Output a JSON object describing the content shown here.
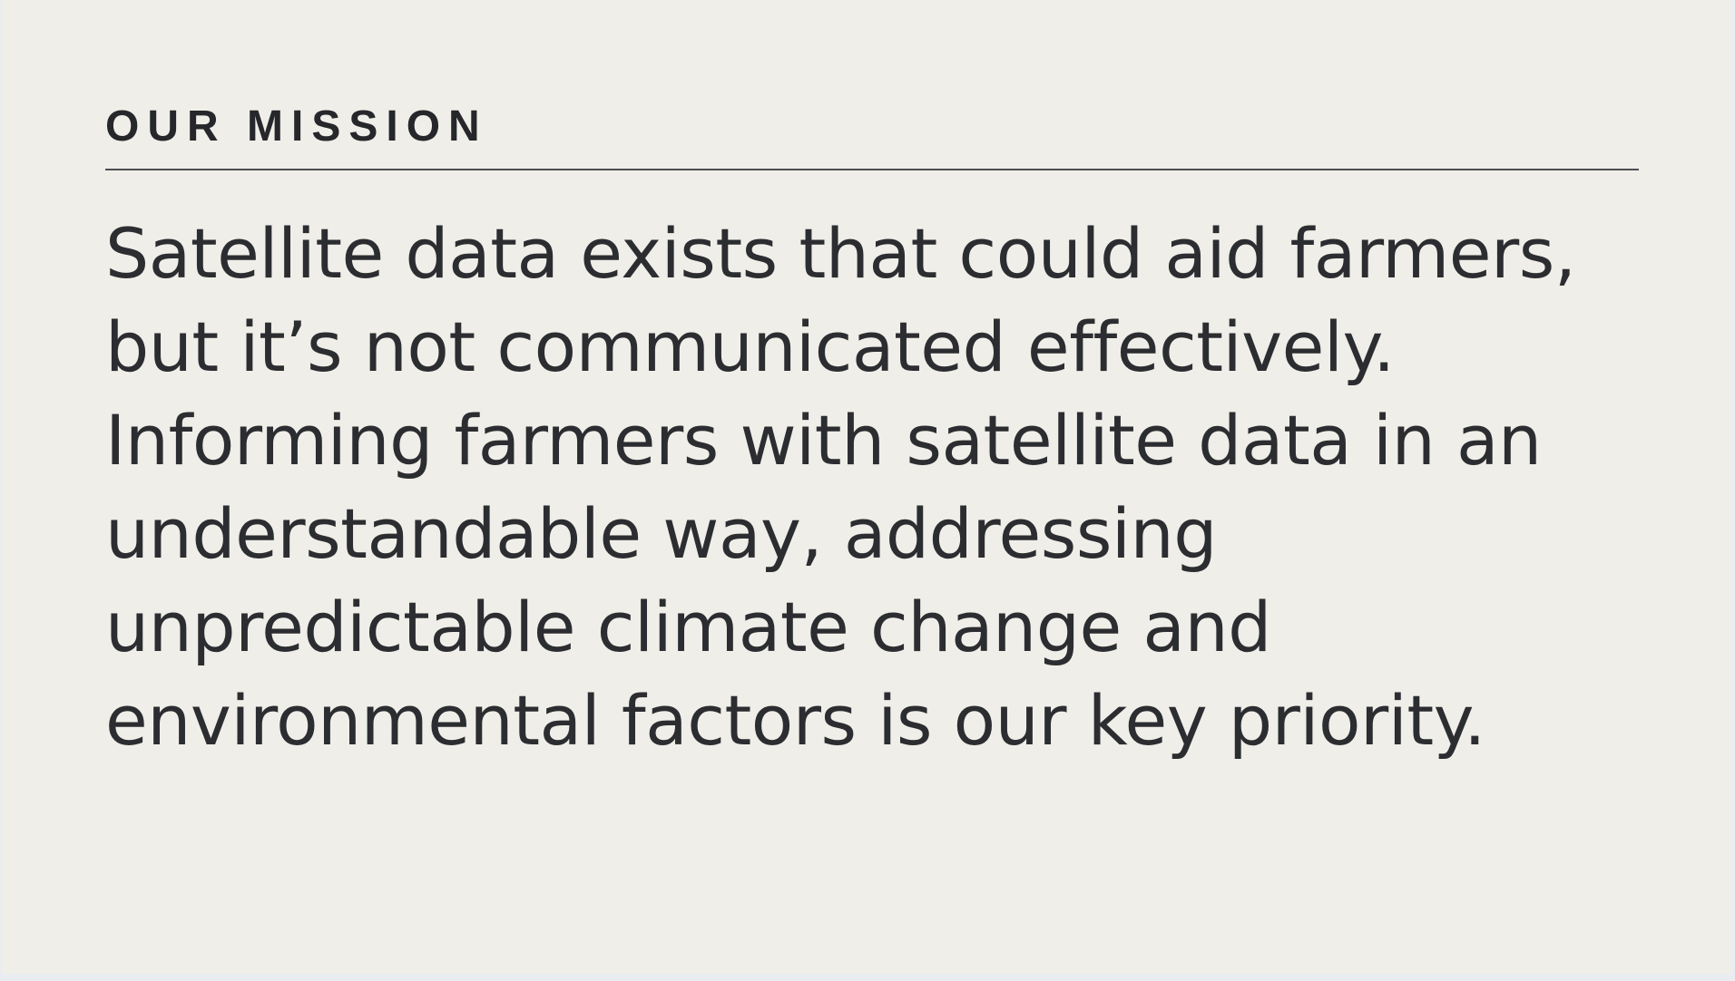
{
  "section": {
    "eyebrow": "OUR MISSION",
    "statement_lines": [
      "Satellite data exists that could aid farmers,",
      "but it’s not communicated effectively.",
      "Informing farmers with satellite data in an",
      "understandable way, addressing",
      "unpredictable climate change and",
      "environmental factors is our key priority."
    ]
  },
  "colors": {
    "background": "#efeee8",
    "text": "#2c2d31",
    "rule": "#4d4f53"
  }
}
